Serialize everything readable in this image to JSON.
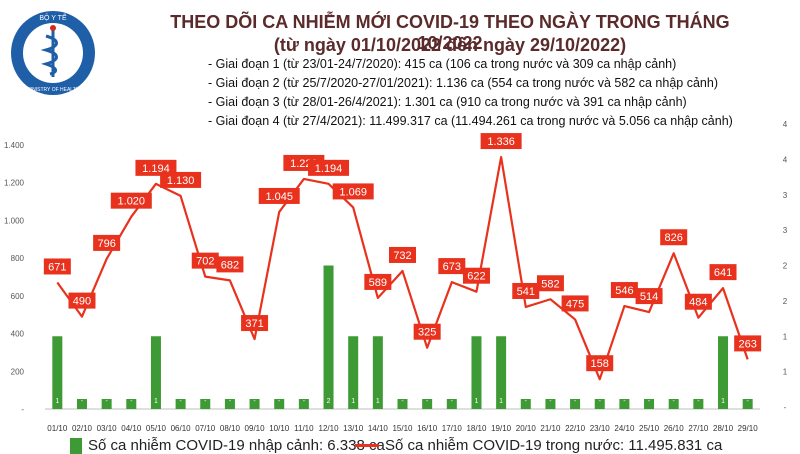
{
  "header": {
    "logo_text_top": "BỘ Y TẾ",
    "logo_text_bottom": "MINISTRY OF HEALTH",
    "title": "THEO DÕI CA NHIỄM MỚI COVID-19 THEO NGÀY TRONG THÁNG 10/2022",
    "subtitle": "(từ ngày 01/10/2022 đến ngày 29/10/2022)"
  },
  "phases": [
    "- Giai đoạn 1 (từ 23/01-24/7/2020): 415 ca (106 ca trong nước và 309 ca nhập cảnh)",
    "- Giai đoạn 2 (từ 25/7/2020-27/01/2021): 1.136 ca (554 ca trong nước và 582 ca nhập cảnh)",
    "- Giai đoạn 3 (từ 28/01-26/4/2021): 1.301 ca (910 ca trong nước và 391 ca nhập cảnh)",
    "- Giai đoạn 4 (từ 27/4/2021): 11.499.317 ca (11.494.261 ca trong nước và 5.056 ca nhập cảnh)"
  ],
  "legend": {
    "bar_label": "Số ca nhiễm COVID-19 nhập cảnh: 6.338 ca",
    "line_label": "Số ca nhiễm COVID-19 trong nước: 11.495.831 ca"
  },
  "colors": {
    "bar": "#3e9a34",
    "line": "#e8321e",
    "label_box": "#e8321e",
    "title": "#5b2a2a"
  },
  "chart_data": {
    "type": "bar",
    "categories": [
      "01/10",
      "02/10",
      "03/10",
      "04/10",
      "05/10",
      "06/10",
      "07/10",
      "08/10",
      "09/10",
      "10/10",
      "11/10",
      "12/10",
      "13/10",
      "14/10",
      "15/10",
      "16/10",
      "17/10",
      "18/10",
      "19/10",
      "20/10",
      "21/10",
      "22/10",
      "23/10",
      "24/10",
      "25/10",
      "26/10",
      "27/10",
      "28/10",
      "29/10"
    ],
    "series": [
      {
        "type": "line",
        "axis": "left",
        "values": [
          671,
          490,
          796,
          1020,
          1194,
          1130,
          702,
          682,
          371,
          1045,
          1220,
          1194,
          1069,
          589,
          732,
          325,
          673,
          622,
          1336,
          541,
          582,
          475,
          158,
          546,
          514,
          826,
          484,
          641,
          263
        ],
        "labels": [
          "671",
          "490",
          "796",
          "1.020",
          "1.194",
          "1.130",
          "702",
          "682",
          "371",
          "1.045",
          "1.220",
          "1.194",
          "1.069",
          "589",
          "732",
          "325",
          "673",
          "622",
          "1.336",
          "541",
          "582",
          "475",
          "158",
          "546",
          "514",
          "826",
          "484",
          "641",
          "263"
        ]
      },
      {
        "type": "bar",
        "axis": "right",
        "values": [
          1,
          0,
          0,
          0,
          1,
          0,
          0,
          0,
          0,
          0,
          0,
          2,
          1,
          1,
          0,
          0,
          0,
          1,
          1,
          0,
          0,
          0,
          0,
          0,
          0,
          0,
          0,
          1,
          0
        ],
        "labels": [
          "1",
          "-",
          "-",
          "-",
          "1",
          "-",
          "-",
          "-",
          "-",
          "-",
          "-",
          "2",
          "1",
          "1",
          "-",
          "-",
          "-",
          "1",
          "1",
          "-",
          "-",
          "-",
          "-",
          "-",
          "-",
          "-",
          "-",
          "1",
          "-"
        ]
      }
    ],
    "y_left": {
      "ylim": [
        0,
        1400
      ],
      "ticks": [
        "-",
        "200",
        "400",
        "600",
        "800",
        "1.000",
        "1.200",
        "1.400"
      ]
    },
    "y_right": {
      "ylim": [
        0,
        4
      ],
      "ticks": [
        "-",
        "1",
        "1",
        "2",
        "2",
        "3",
        "3",
        "4",
        "4"
      ]
    },
    "grid": false
  }
}
